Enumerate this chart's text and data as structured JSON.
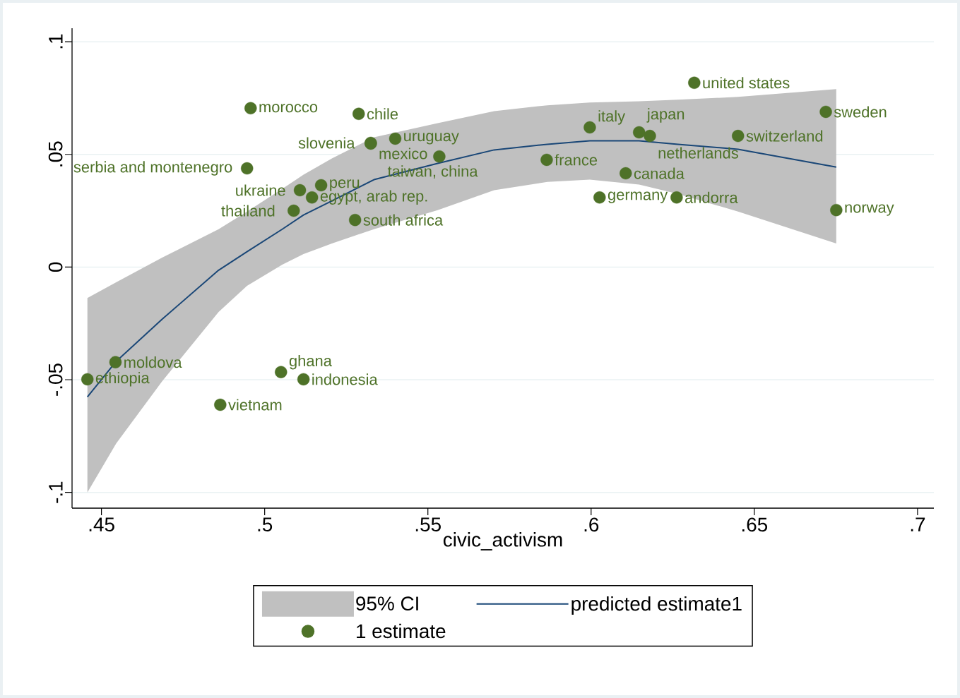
{
  "chart_data": {
    "type": "scatter",
    "xlabel": "civic_activism",
    "xlim": [
      0.441,
      0.705
    ],
    "ylim": [
      -0.107,
      0.106
    ],
    "xticks": [
      {
        "value": 0.45,
        "label": ".45"
      },
      {
        "value": 0.5,
        "label": ".5"
      },
      {
        "value": 0.55,
        "label": ".55"
      },
      {
        "value": 0.6,
        "label": ".6"
      },
      {
        "value": 0.65,
        "label": ".65"
      },
      {
        "value": 0.7,
        "label": ".7"
      }
    ],
    "yticks": [
      {
        "value": -0.1,
        "label": "-.1"
      },
      {
        "value": -0.05,
        "label": "-.05"
      },
      {
        "value": 0,
        "label": "0"
      },
      {
        "value": 0.05,
        "label": ".05"
      },
      {
        "value": 0.1,
        "label": ".1"
      }
    ],
    "grid": "y",
    "legend": "bottom",
    "annotations": [
      "95% CI"
    ],
    "series": [
      {
        "name": "predicted estimate1",
        "type": "line",
        "color": "#1a4777",
        "x": [
          0.4457,
          0.4545,
          0.4686,
          0.4859,
          0.4946,
          0.5054,
          0.5119,
          0.5206,
          0.5335,
          0.553,
          0.5703,
          0.5866,
          0.5996,
          0.6147,
          0.6266,
          0.645,
          0.6751
        ],
        "values": [
          -0.0576,
          -0.0419,
          -0.0231,
          -0.0014,
          0.0068,
          0.0168,
          0.0231,
          0.0294,
          0.0388,
          0.046,
          0.052,
          0.0545,
          0.056,
          0.056,
          0.0545,
          0.0523,
          0.0444
        ],
        "lower": [
          -0.1,
          -0.0783,
          -0.0507,
          -0.0199,
          -0.0083,
          0.0011,
          0.0058,
          0.0105,
          0.0168,
          0.0253,
          0.0341,
          0.0378,
          0.0388,
          0.0366,
          0.0325,
          0.0246,
          0.0105
        ],
        "upper": [
          -0.0137,
          -0.0068,
          0.0042,
          0.0168,
          0.0246,
          0.0347,
          0.041,
          0.0482,
          0.0576,
          0.0639,
          0.0692,
          0.0718,
          0.073,
          0.0736,
          0.0743,
          0.0755,
          0.079
        ]
      },
      {
        "name": "1 estimate",
        "color": "#4e7228",
        "marker": "circle",
        "x": [
          0.4957,
          0.5288,
          0.5325,
          0.5325,
          0.54,
          0.5535,
          0.4946,
          0.5173,
          0.5108,
          0.5145,
          0.5089,
          0.5277,
          0.5864,
          0.5996,
          0.6147,
          0.618,
          0.645,
          0.6316,
          0.6719,
          0.6106,
          0.6026,
          0.6262,
          0.6751,
          0.4543,
          0.4457,
          0.505,
          0.5119,
          0.4864
        ],
        "values": [
          0.0705,
          0.068,
          0.0551,
          0.0548,
          0.057,
          0.0491,
          0.0438,
          0.0363,
          0.0341,
          0.0309,
          0.025,
          0.0209,
          0.0476,
          0.062,
          0.0598,
          0.0582,
          0.0582,
          0.0818,
          0.0689,
          0.0416,
          0.0309,
          0.0309,
          0.0253,
          -0.0422,
          -0.0498,
          -0.0466,
          -0.0498,
          -0.0611
        ],
        "value_labels": [
          "morocco",
          "chile",
          "slovenia",
          "mexico",
          "uruguay",
          "taiwan, china",
          "serbia and montenegro",
          "peru",
          "ukraine",
          "egypt, arab rep.",
          "thailand",
          "south africa",
          "france",
          "italy",
          "japan",
          "netherlands",
          "switzerland",
          "united states",
          "sweden",
          "canada",
          "germany",
          "andorra",
          "norway",
          "moldova",
          "ethiopia",
          "ghana",
          "indonesia",
          "vietnam"
        ]
      }
    ]
  }
}
